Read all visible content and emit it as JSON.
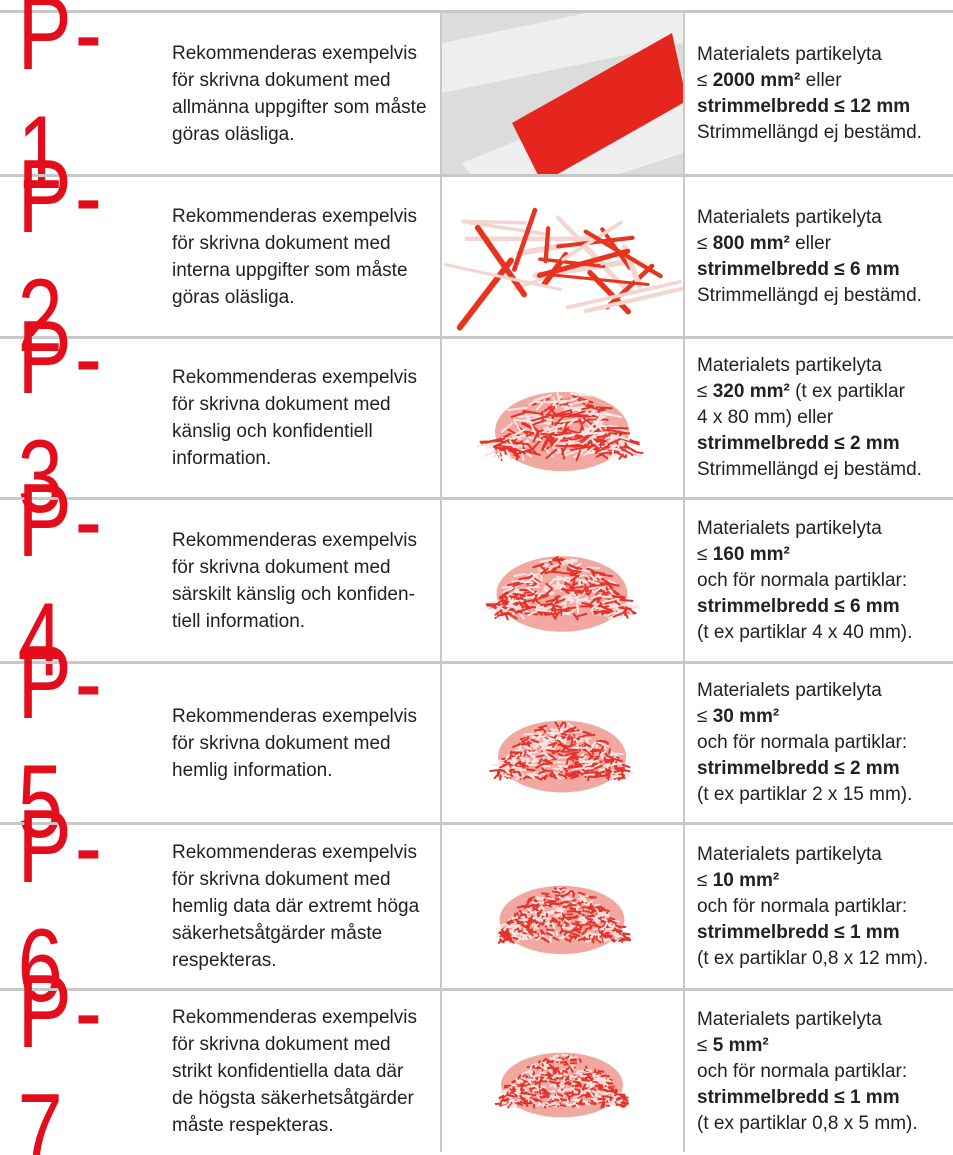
{
  "rows": [
    {
      "level": "P-1",
      "description": [
        "Rekommenderas exempelvis",
        "för skrivna dokument med",
        "allmänna uppgifter som måste",
        "göras oläsliga."
      ],
      "spec": [
        [
          {
            "text": "Materialets partikelyta"
          }
        ],
        [
          {
            "text": "≤ "
          },
          {
            "text": "2000 mm²",
            "bold": true
          },
          {
            "text": " eller"
          }
        ],
        [
          {
            "text": "strimmelbredd ≤ 12 mm",
            "bold": true
          }
        ],
        [
          {
            "text": "Strimmellängd ej bestämd."
          }
        ]
      ]
    },
    {
      "level": "P-2",
      "description": [
        "Rekommenderas exempelvis",
        "för skrivna dokument med",
        "interna uppgifter som måste",
        "göras oläsliga."
      ],
      "spec": [
        [
          {
            "text": "Materialets partikelyta"
          }
        ],
        [
          {
            "text": "≤ "
          },
          {
            "text": "800 mm²",
            "bold": true
          },
          {
            "text": " eller"
          }
        ],
        [
          {
            "text": "strimmelbredd ≤ 6 mm",
            "bold": true
          }
        ],
        [
          {
            "text": "Strimmellängd ej bestämd."
          }
        ]
      ]
    },
    {
      "level": "P-3",
      "description": [
        "Rekommenderas exempelvis",
        "för skrivna dokument med",
        "känslig och konfidentiell",
        "information."
      ],
      "spec": [
        [
          {
            "text": "Materialets partikelyta"
          }
        ],
        [
          {
            "text": "≤ "
          },
          {
            "text": "320 mm²",
            "bold": true
          },
          {
            "text": " (t ex partiklar"
          }
        ],
        [
          {
            "text": "4 x 80 mm) eller"
          }
        ],
        [
          {
            "text": "strimmelbredd ≤ 2 mm",
            "bold": true
          }
        ],
        [
          {
            "text": "Strimmellängd ej bestämd."
          }
        ]
      ]
    },
    {
      "level": "P-4",
      "description": [
        "Rekommenderas exempelvis",
        "för skrivna dokument med",
        "särskilt känslig och konfiden-",
        "tiell information."
      ],
      "spec": [
        [
          {
            "text": "Materialets partikelyta"
          }
        ],
        [
          {
            "text": "≤ "
          },
          {
            "text": "160 mm²",
            "bold": true
          }
        ],
        [
          {
            "text": "och för normala partiklar:"
          }
        ],
        [
          {
            "text": "strimmelbredd ≤ 6 mm",
            "bold": true
          }
        ],
        [
          {
            "text": "(t ex partiklar 4 x 40 mm)."
          }
        ]
      ]
    },
    {
      "level": "P-5",
      "description": [
        "Rekommenderas exempelvis",
        "för skrivna dokument med",
        "hemlig information."
      ],
      "spec": [
        [
          {
            "text": "Materialets partikelyta"
          }
        ],
        [
          {
            "text": "≤ "
          },
          {
            "text": "30 mm²",
            "bold": true
          }
        ],
        [
          {
            "text": "och för normala partiklar:"
          }
        ],
        [
          {
            "text": "strimmelbredd ≤ 2 mm",
            "bold": true
          }
        ],
        [
          {
            "text": "(t ex partiklar 2 x 15 mm)."
          }
        ]
      ]
    },
    {
      "level": "P-6",
      "description": [
        "Rekommenderas exempelvis",
        "för skrivna dokument med",
        "hemlig data där extremt höga",
        "säkerhetsåtgärder måste",
        "respekteras."
      ],
      "spec": [
        [
          {
            "text": "Materialets partikelyta"
          }
        ],
        [
          {
            "text": "≤ "
          },
          {
            "text": "10 mm²",
            "bold": true
          }
        ],
        [
          {
            "text": "och för normala partiklar:"
          }
        ],
        [
          {
            "text": "strimmelbredd ≤ 1 mm",
            "bold": true
          }
        ],
        [
          {
            "text": "(t ex partiklar 0,8 x 12 mm)."
          }
        ]
      ]
    },
    {
      "level": "P-7",
      "description": [
        "Rekommenderas exempelvis",
        "för skrivna dokument med",
        "strikt konfidentiella data där",
        "de högsta säkerhetsåtgärder",
        "måste respekteras."
      ],
      "spec": [
        [
          {
            "text": "Materialets partikelyta"
          }
        ],
        [
          {
            "text": "≤ "
          },
          {
            "text": "5 mm²",
            "bold": true
          }
        ],
        [
          {
            "text": "och för normala partiklar:"
          }
        ],
        [
          {
            "text": "strimmelbredd ≤ 1 mm",
            "bold": true
          }
        ],
        [
          {
            "text": "(t ex partiklar 0,8 x 5 mm)."
          }
        ]
      ]
    }
  ]
}
